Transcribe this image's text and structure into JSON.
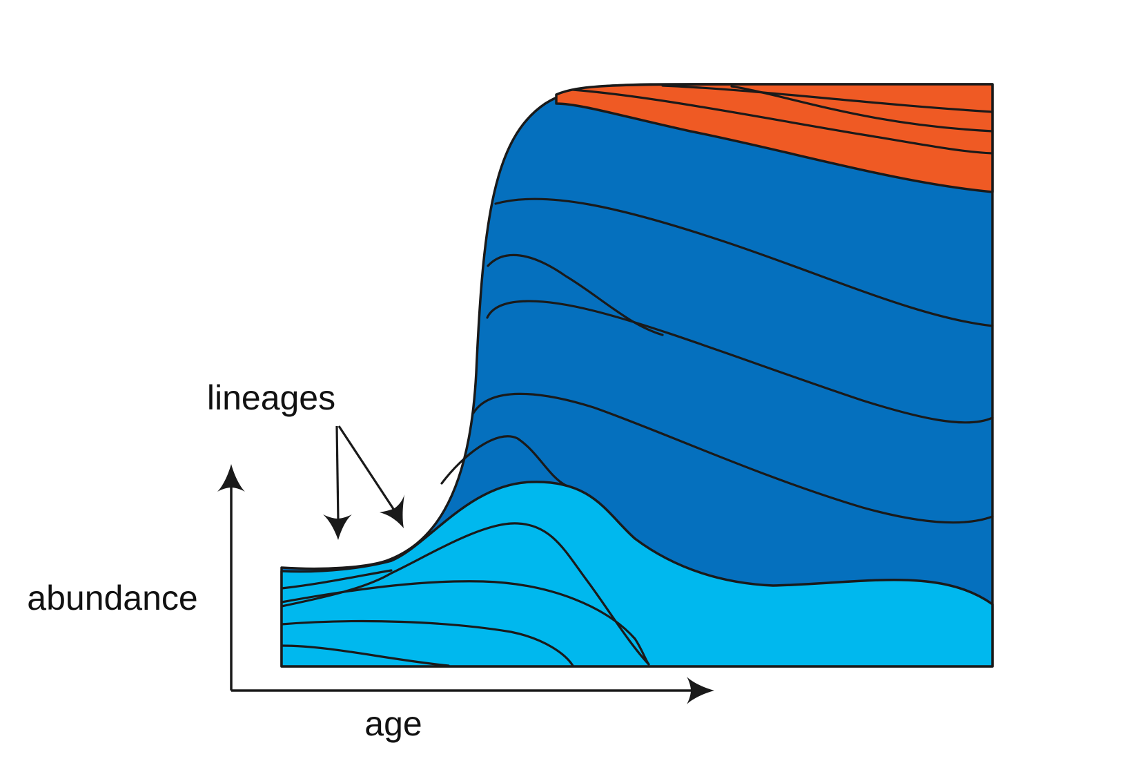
{
  "diagram": {
    "labels": {
      "lineages": "lineages",
      "abundance": "abundance",
      "age": "age"
    },
    "colors": {
      "light_blue": "#00B8EE",
      "dark_blue": "#0570BE",
      "orange": "#EF5A24",
      "line": "#1A1A1A",
      "background": "#FFFFFF"
    },
    "icons": {
      "y_axis_arrow": "arrow-up-icon",
      "x_axis_arrow": "arrow-right-icon",
      "pointer_arrows": "arrow-down-icon"
    }
  }
}
